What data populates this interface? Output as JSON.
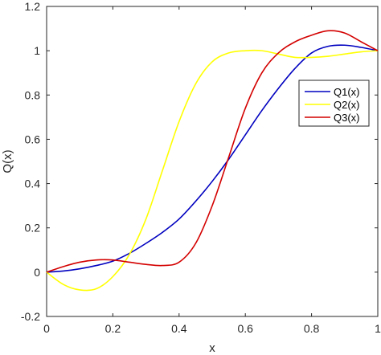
{
  "chart_data": {
    "type": "line",
    "title": "",
    "xlabel": "x",
    "ylabel": "Q(x)",
    "xlim": [
      0,
      1
    ],
    "ylim": [
      -0.2,
      1.2
    ],
    "xticks": [
      0,
      0.2,
      0.4,
      0.6,
      0.8,
      1
    ],
    "xtick_labels": [
      "0",
      "0.2",
      "0.4",
      "0.6",
      "0.8",
      "1"
    ],
    "yticks": [
      -0.2,
      0,
      0.2,
      0.4,
      0.6,
      0.8,
      1,
      1.2
    ],
    "ytick_labels": [
      "-0.2",
      "0",
      "0.2",
      "0.4",
      "0.6",
      "0.8",
      "1",
      "1.2"
    ],
    "grid": false,
    "legend_position": "right, middle-upper",
    "x": [
      0,
      0.05,
      0.1,
      0.15,
      0.2,
      0.25,
      0.3,
      0.35,
      0.4,
      0.45,
      0.5,
      0.55,
      0.6,
      0.65,
      0.7,
      0.75,
      0.8,
      0.85,
      0.9,
      0.95,
      1
    ],
    "series": [
      {
        "name": "Q1(x)",
        "color": "#0000c0",
        "values": [
          0,
          0.005,
          0.015,
          0.03,
          0.05,
          0.085,
          0.13,
          0.18,
          0.24,
          0.32,
          0.41,
          0.51,
          0.62,
          0.73,
          0.83,
          0.92,
          0.99,
          1.02,
          1.025,
          1.015,
          1.0
        ]
      },
      {
        "name": "Q2(x)",
        "color": "#ffff00",
        "values": [
          0,
          -0.055,
          -0.08,
          -0.075,
          -0.02,
          0.08,
          0.24,
          0.46,
          0.68,
          0.85,
          0.95,
          0.99,
          1.0,
          1.0,
          0.985,
          0.97,
          0.97,
          0.975,
          0.985,
          0.995,
          1.0
        ]
      },
      {
        "name": "Q3(x)",
        "color": "#d40000",
        "values": [
          0,
          0.025,
          0.045,
          0.055,
          0.055,
          0.045,
          0.035,
          0.03,
          0.045,
          0.13,
          0.3,
          0.52,
          0.74,
          0.9,
          0.99,
          1.04,
          1.07,
          1.09,
          1.08,
          1.04,
          1.0
        ]
      }
    ]
  }
}
